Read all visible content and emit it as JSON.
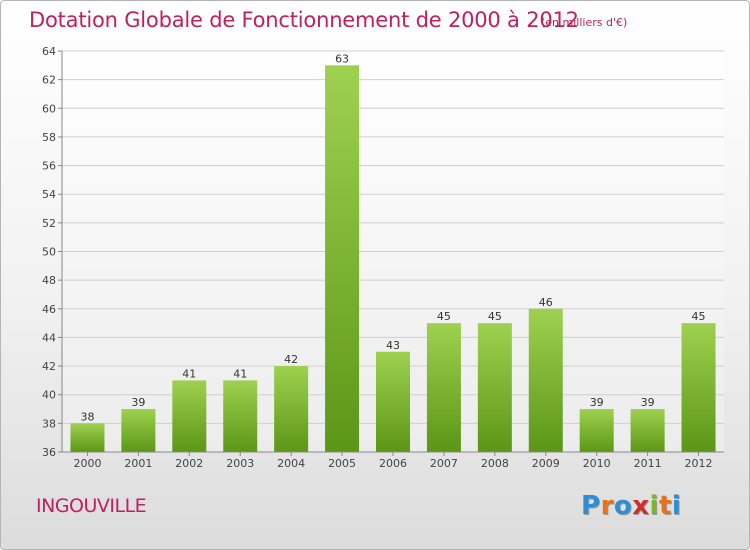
{
  "header": {
    "title": "Dotation Globale de Fonctionnement de 2000 à 2012",
    "subtitle": "(en milliers d'€)"
  },
  "commune": "INGOUVILLE",
  "logo": {
    "text": "Proxiti",
    "letters": [
      "P",
      "r",
      "o",
      "x",
      "i",
      "t",
      "i"
    ],
    "colors": [
      "#2b8fd6",
      "#e8721c",
      "#2b8fd6",
      "#d22d2d",
      "#78b62a",
      "#e8721c",
      "#2b8fd6"
    ]
  },
  "colors": {
    "accent": "#c0215a",
    "bar_top": "#9fd150",
    "bar_bottom": "#5c9616",
    "grid": "#cfcfcf"
  },
  "chart_data": {
    "type": "bar",
    "title": "Dotation Globale de Fonctionnement de 2000 à 2012",
    "subtitle": "(en milliers d'€)",
    "categories": [
      "2000",
      "2001",
      "2002",
      "2003",
      "2004",
      "2005",
      "2006",
      "2007",
      "2008",
      "2009",
      "2010",
      "2011",
      "2012"
    ],
    "values": [
      38,
      39,
      41,
      41,
      42,
      63,
      43,
      45,
      45,
      46,
      39,
      39,
      45
    ],
    "ylim": [
      36,
      64
    ],
    "yticks": [
      36,
      38,
      40,
      42,
      44,
      46,
      48,
      50,
      52,
      54,
      56,
      58,
      60,
      62,
      64
    ],
    "grid": true,
    "data_labels": true,
    "legend": "none",
    "xlabel": "",
    "ylabel": ""
  }
}
